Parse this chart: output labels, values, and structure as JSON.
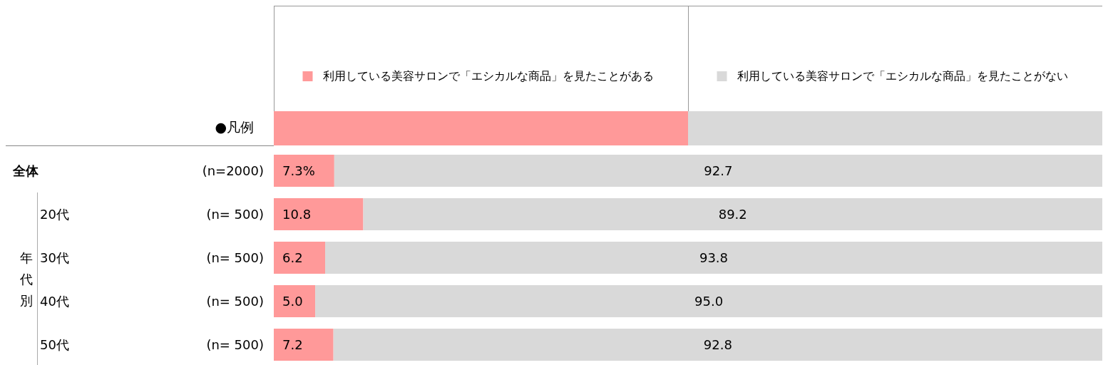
{
  "chart_data": {
    "type": "bar",
    "orientation": "horizontal",
    "stacked": true,
    "legend": "top",
    "legend_title": "●凡例",
    "tick_labels": false,
    "categories": [
      "全体 (n=2000)",
      "20代 (n= 500)",
      "30代 (n= 500)",
      "40代 (n= 500)",
      "50代 (n= 500)"
    ],
    "annotations": [
      "年代別"
    ],
    "xlim": [
      0,
      100
    ],
    "series": [
      {
        "name": "利用している美容サロンで「エシカルな商品」を見たことがある",
        "color": "#ff9999",
        "values": [
          7.3,
          10.8,
          6.2,
          5.0,
          7.2
        ],
        "value_labels": [
          "7.3%",
          "10.8",
          "6.2",
          "5.0",
          "7.2"
        ]
      },
      {
        "name": "利用している美容サロンで「エシカルな商品」を見たことがない",
        "color": "#d9d9d9",
        "values": [
          92.7,
          89.2,
          93.8,
          95.0,
          92.8
        ],
        "value_labels": [
          "92.7",
          "89.2",
          "93.8",
          "95.0",
          "92.8"
        ]
      }
    ]
  }
}
